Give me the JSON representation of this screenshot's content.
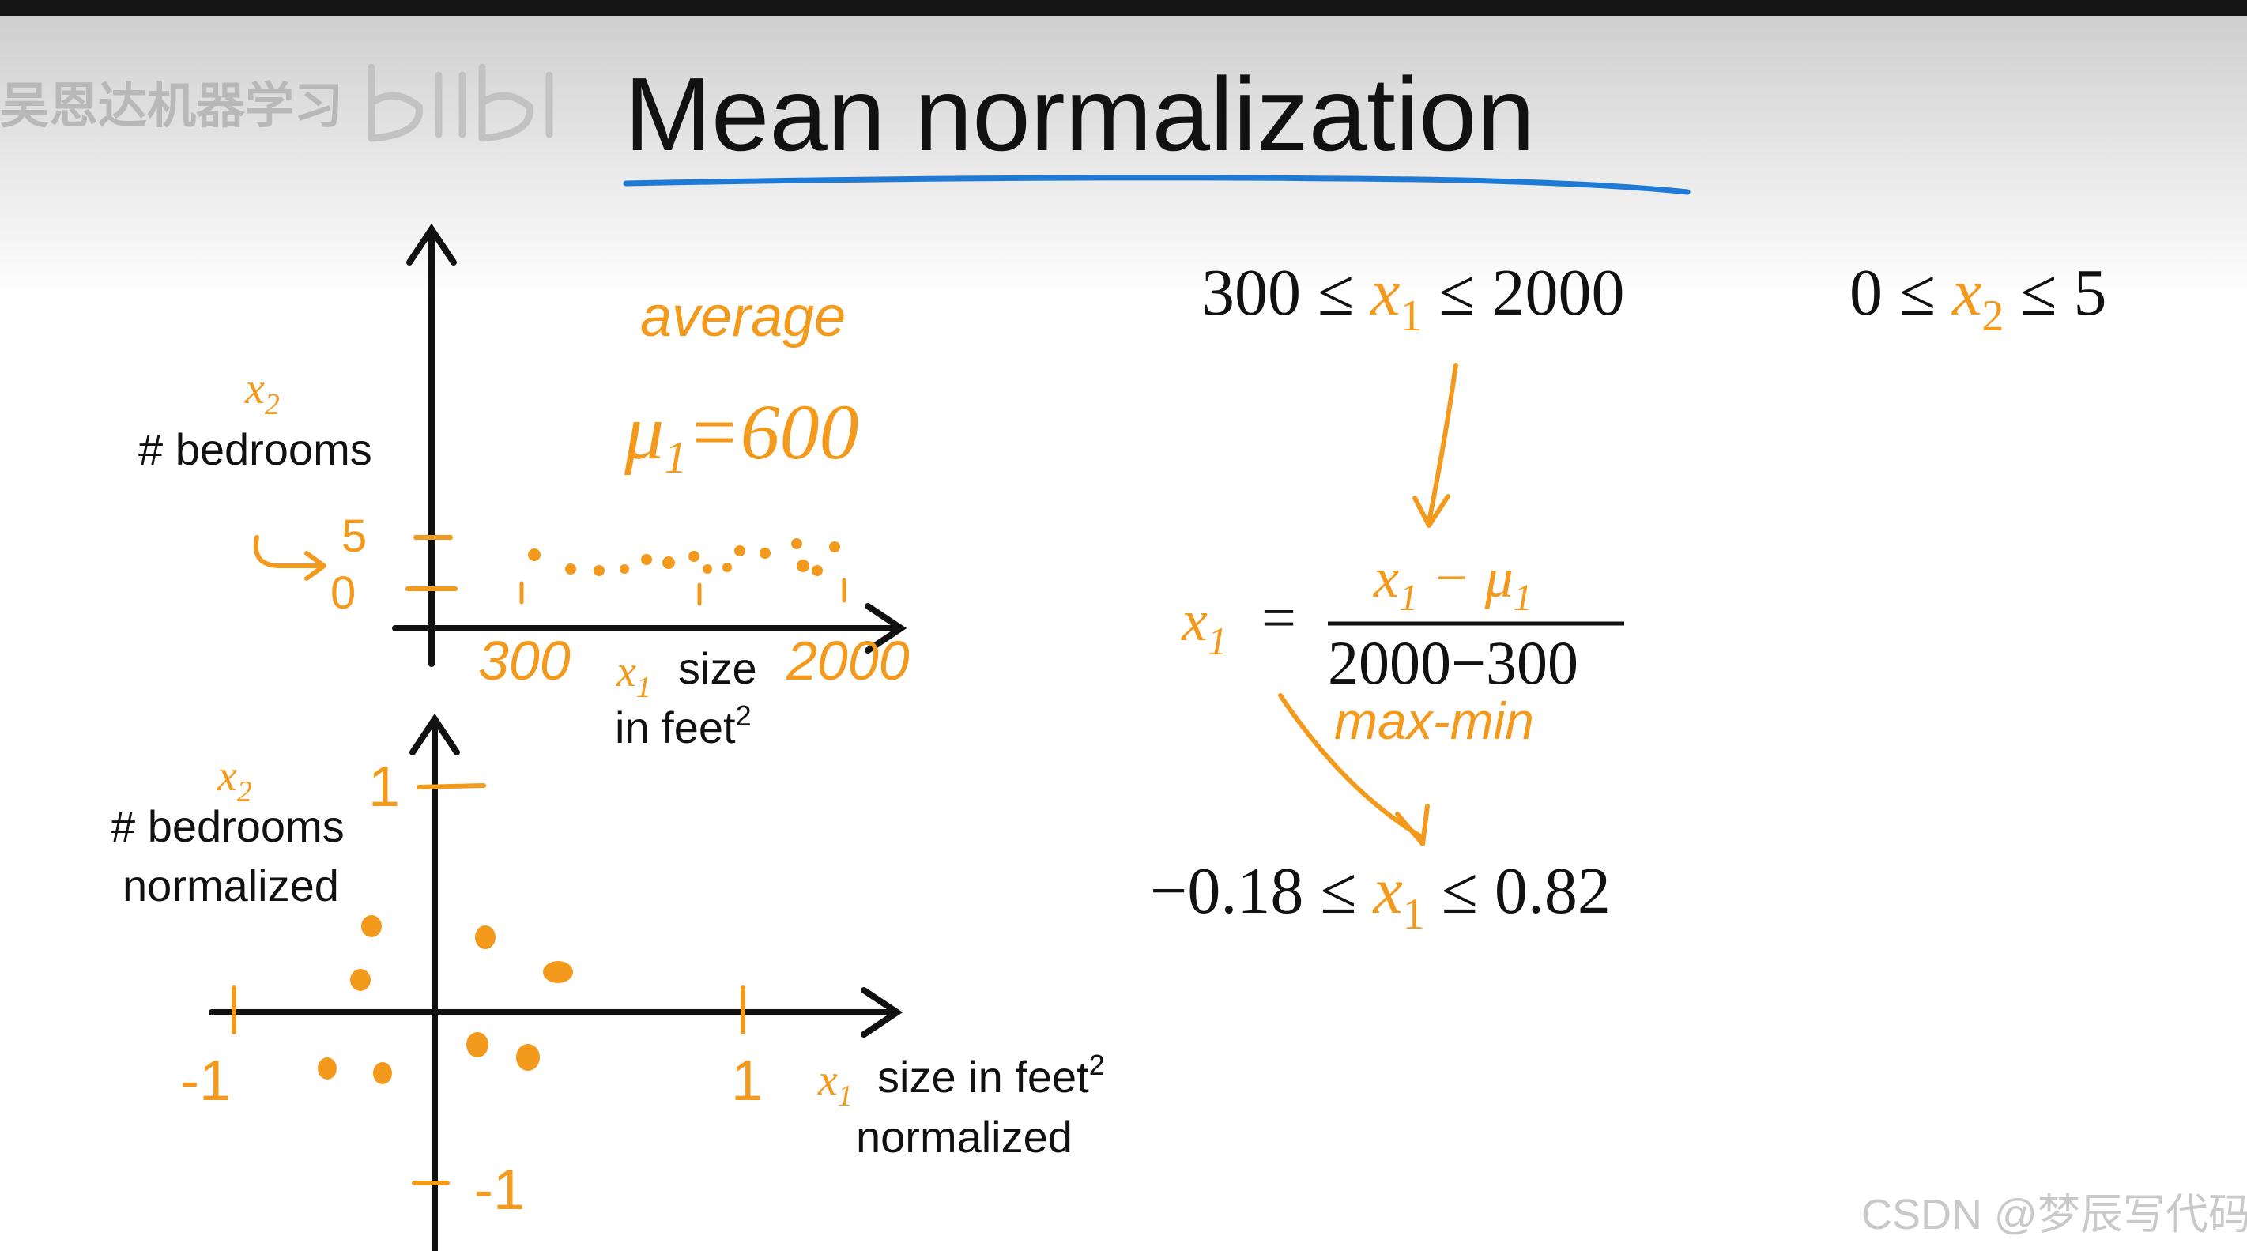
{
  "watermark_top": "吴恩达机器学习",
  "watermark_bottom": "CSDN @梦辰写代码",
  "title": "Mean normalization",
  "top_plot": {
    "y_var": "x",
    "y_sub": "2",
    "y_label": "# bedrooms",
    "y_tick_high": "5",
    "y_tick_low": "0",
    "x_tick_low": "300",
    "x_tick_high": "2000",
    "x_var": "x",
    "x_sub": "1",
    "x_label_line1": "size",
    "x_label_line2": "in feet",
    "x_label_sup": "2",
    "note_average": "average",
    "note_mu": "μ",
    "note_mu_sub": "1",
    "note_mu_value": "=600"
  },
  "bottom_plot": {
    "y_var": "x",
    "y_sub": "2",
    "y_label_line1": "# bedrooms",
    "y_label_line2": "normalized",
    "tick_y_pos": "1",
    "tick_x_neg": "-1",
    "tick_x_pos": "1",
    "tick_y_neg": "-1",
    "x_var": "x",
    "x_sub": "1",
    "x_label_line1": "size in feet",
    "x_label_sup": "2",
    "x_label_line2": "normalized"
  },
  "formulas": {
    "range_x1_left": "300 ≤ ",
    "range_x1_var": "x",
    "range_x1_sub": "1",
    "range_x1_right": " ≤ 2000",
    "range_x2_left": "0 ≤ ",
    "range_x2_var": "x",
    "range_x2_sub": "2",
    "range_x2_right": " ≤ 5",
    "lhs_var": "x",
    "lhs_sub": "1",
    "equals": "=",
    "num_var": "x",
    "num_sub": "1",
    "num_minus": " − ",
    "num_mu": "μ",
    "num_mu_sub": "1",
    "denominator": "2000−300",
    "handwritten_maxmin": "max-min",
    "result_left": "−0.18 ≤ ",
    "result_var": "x",
    "result_sub": "1",
    "result_right": " ≤ 0.82"
  }
}
